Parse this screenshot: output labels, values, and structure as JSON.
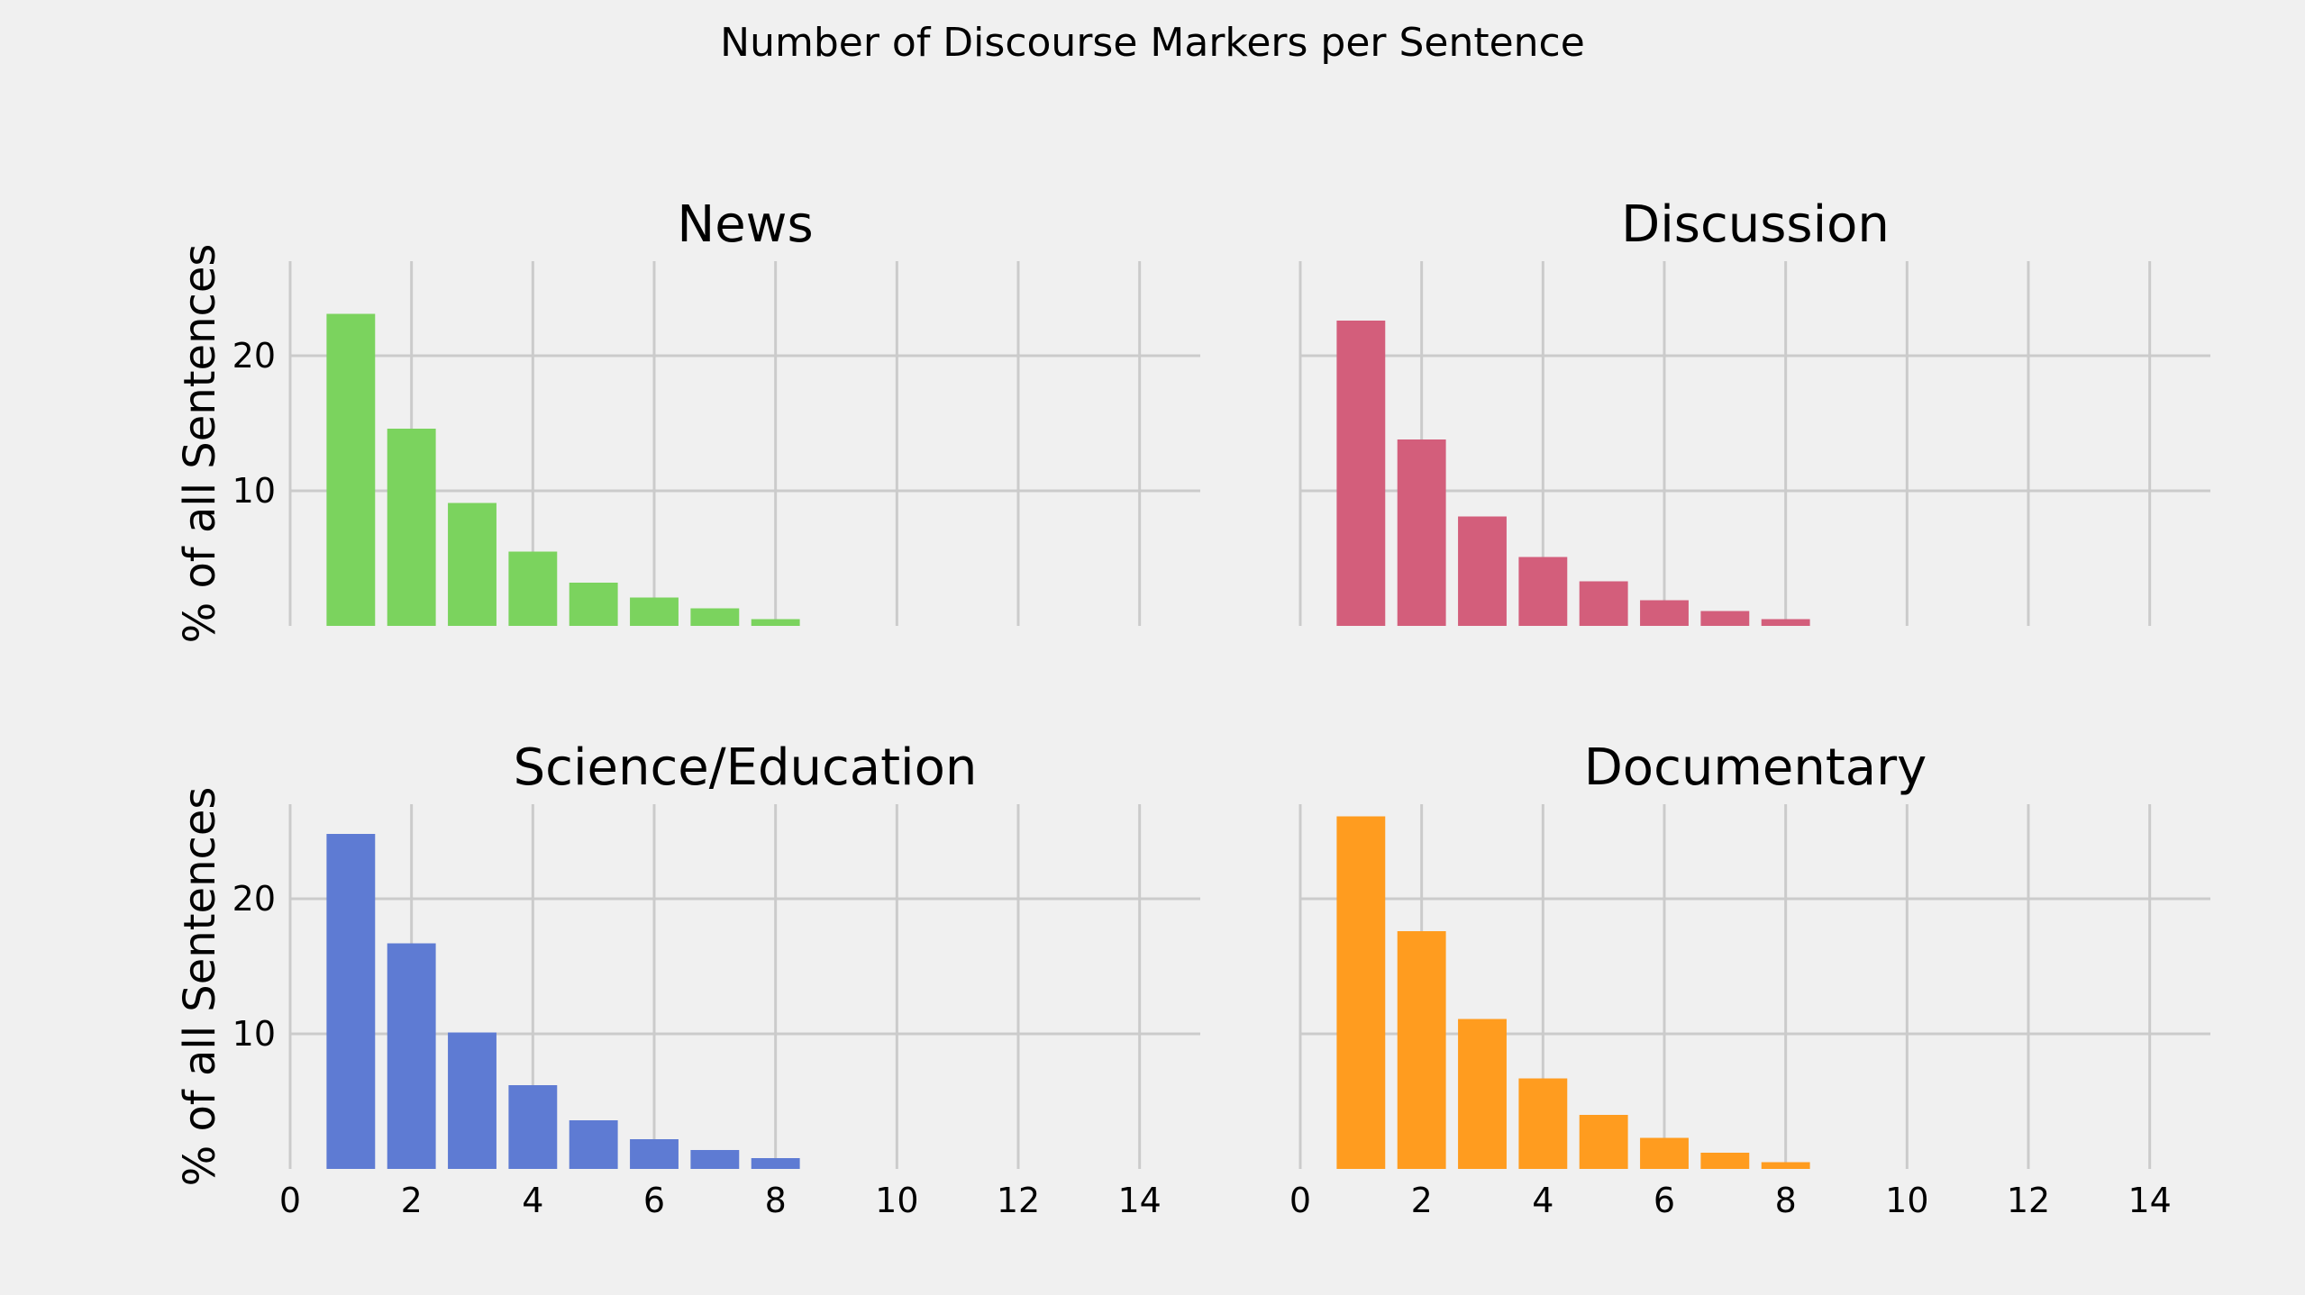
{
  "title": "Number of Discourse Markers per Sentence",
  "ylabel": "% of all Sentences",
  "chart_data": [
    {
      "type": "bar",
      "title": "News",
      "color": "#7bd35e",
      "x": [
        1,
        2,
        3,
        4,
        5,
        6,
        7,
        8
      ],
      "values": [
        23.1,
        14.6,
        9.1,
        5.5,
        3.2,
        2.1,
        1.3,
        0.5
      ],
      "xlim": [
        0,
        15
      ],
      "ylim": [
        0,
        27
      ],
      "xticks": [
        0,
        2,
        4,
        6,
        8,
        10,
        12,
        14
      ],
      "yticks": [
        10,
        20
      ],
      "ylabel": "% of all Sentences",
      "xlabel": "",
      "grid": true
    },
    {
      "type": "bar",
      "title": "Discussion",
      "color": "#d35e7b",
      "x": [
        1,
        2,
        3,
        4,
        5,
        6,
        7,
        8
      ],
      "values": [
        22.6,
        13.8,
        8.1,
        5.1,
        3.3,
        1.9,
        1.1,
        0.5
      ],
      "xlim": [
        0,
        15
      ],
      "ylim": [
        0,
        27
      ],
      "xticks": [
        0,
        2,
        4,
        6,
        8,
        10,
        12,
        14
      ],
      "yticks": [
        10,
        20
      ],
      "ylabel": "",
      "xlabel": "",
      "grid": true
    },
    {
      "type": "bar",
      "title": "Science/Education",
      "color": "#5e7bd3",
      "x": [
        1,
        2,
        3,
        4,
        5,
        6,
        7,
        8
      ],
      "values": [
        24.8,
        16.7,
        10.1,
        6.2,
        3.6,
        2.2,
        1.4,
        0.8
      ],
      "xlim": [
        0,
        15
      ],
      "ylim": [
        0,
        27
      ],
      "xticks": [
        0,
        2,
        4,
        6,
        8,
        10,
        12,
        14
      ],
      "yticks": [
        10,
        20
      ],
      "ylabel": "% of all Sentences",
      "xlabel": "",
      "grid": true
    },
    {
      "type": "bar",
      "title": "Documentary",
      "color": "#ff9c1f",
      "x": [
        1,
        2,
        3,
        4,
        5,
        6,
        7,
        8
      ],
      "values": [
        26.1,
        17.6,
        11.1,
        6.7,
        4.0,
        2.3,
        1.2,
        0.5
      ],
      "xlim": [
        0,
        15
      ],
      "ylim": [
        0,
        27
      ],
      "xticks": [
        0,
        2,
        4,
        6,
        8,
        10,
        12,
        14
      ],
      "yticks": [
        10,
        20
      ],
      "ylabel": "",
      "xlabel": "",
      "grid": true
    }
  ]
}
